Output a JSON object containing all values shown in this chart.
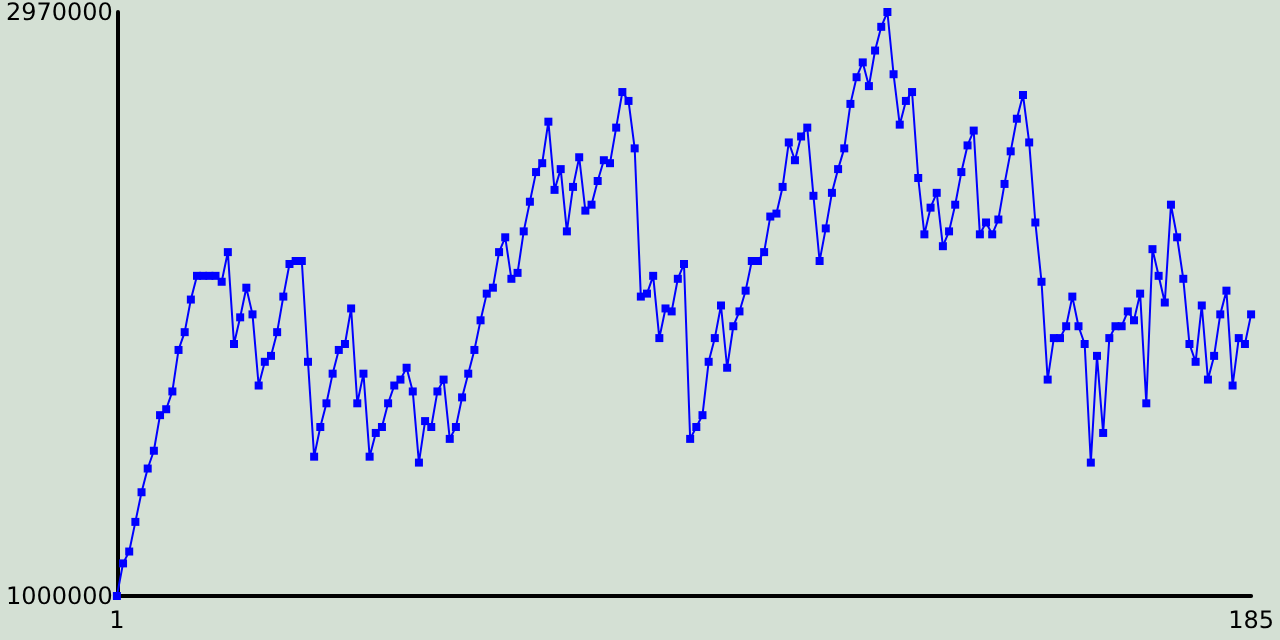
{
  "chart_data": {
    "type": "line",
    "marker": "square",
    "line_style": "solid",
    "grid": false,
    "legend": false,
    "xlim": [
      1,
      185
    ],
    "xticks": [
      1,
      185
    ],
    "ylim": [
      1000000,
      2970000
    ],
    "yticks": [
      1000000,
      2970000
    ],
    "series": [
      {
        "color": "#0000ff",
        "x": [
          1,
          2,
          3,
          4,
          5,
          6,
          7,
          8,
          9,
          10,
          11,
          12,
          13,
          14,
          15,
          16,
          17,
          18,
          19,
          20,
          21,
          22,
          23,
          24,
          25,
          26,
          27,
          28,
          29,
          30,
          31,
          32,
          33,
          34,
          35,
          36,
          37,
          38,
          39,
          40,
          41,
          42,
          43,
          44,
          45,
          46,
          47,
          48,
          49,
          50,
          51,
          52,
          53,
          54,
          55,
          56,
          57,
          58,
          59,
          60,
          61,
          62,
          63,
          64,
          65,
          66,
          67,
          68,
          69,
          70,
          71,
          72,
          73,
          74,
          75,
          76,
          77,
          78,
          79,
          80,
          81,
          82,
          83,
          84,
          85,
          86,
          87,
          88,
          89,
          90,
          91,
          92,
          93,
          94,
          95,
          96,
          97,
          98,
          99,
          100,
          101,
          102,
          103,
          104,
          105,
          106,
          107,
          108,
          109,
          110,
          111,
          112,
          113,
          114,
          115,
          116,
          117,
          118,
          119,
          120,
          121,
          122,
          123,
          124,
          125,
          126,
          127,
          128,
          129,
          130,
          131,
          132,
          133,
          134,
          135,
          136,
          137,
          138,
          139,
          140,
          141,
          142,
          143,
          144,
          145,
          146,
          147,
          148,
          149,
          150,
          151,
          152,
          153,
          154,
          155,
          156,
          157,
          158,
          159,
          160,
          161,
          162,
          163,
          164,
          165,
          166,
          167,
          168,
          169,
          170,
          171,
          172,
          173,
          174,
          175,
          176,
          177,
          178,
          179,
          180,
          181,
          182,
          183,
          184,
          185
        ],
        "values": [
          1000000,
          1110000,
          1150000,
          1250000,
          1350000,
          1430000,
          1490000,
          1610000,
          1630000,
          1690000,
          1830000,
          1890000,
          2000000,
          2080000,
          2080000,
          2080000,
          2080000,
          2060000,
          2160000,
          1850000,
          1940000,
          2040000,
          1950000,
          1710000,
          1790000,
          1810000,
          1890000,
          2010000,
          2120000,
          2130000,
          2130000,
          1790000,
          1470000,
          1570000,
          1650000,
          1750000,
          1830000,
          1850000,
          1970000,
          1650000,
          1750000,
          1470000,
          1550000,
          1570000,
          1650000,
          1710000,
          1730000,
          1770000,
          1690000,
          1450000,
          1590000,
          1570000,
          1690000,
          1730000,
          1530000,
          1570000,
          1670000,
          1750000,
          1830000,
          1930000,
          2020000,
          2040000,
          2160000,
          2210000,
          2070000,
          2090000,
          2230000,
          2330000,
          2430000,
          2460000,
          2600000,
          2370000,
          2440000,
          2230000,
          2380000,
          2480000,
          2300000,
          2320000,
          2400000,
          2470000,
          2460000,
          2580000,
          2700000,
          2670000,
          2510000,
          2010000,
          2020000,
          2080000,
          1870000,
          1970000,
          1960000,
          2070000,
          2120000,
          1530000,
          1570000,
          1610000,
          1790000,
          1870000,
          1980000,
          1770000,
          1910000,
          1960000,
          2030000,
          2130000,
          2130000,
          2160000,
          2280000,
          2290000,
          2380000,
          2530000,
          2470000,
          2550000,
          2580000,
          2350000,
          2130000,
          2240000,
          2360000,
          2440000,
          2510000,
          2660000,
          2750000,
          2800000,
          2720000,
          2840000,
          2920000,
          2970000,
          2760000,
          2590000,
          2670000,
          2700000,
          2410000,
          2220000,
          2310000,
          2360000,
          2180000,
          2230000,
          2320000,
          2430000,
          2520000,
          2570000,
          2220000,
          2260000,
          2220000,
          2270000,
          2390000,
          2500000,
          2610000,
          2690000,
          2530000,
          2260000,
          2060000,
          1730000,
          1870000,
          1870000,
          1910000,
          2010000,
          1910000,
          1850000,
          1450000,
          1810000,
          1550000,
          1870000,
          1910000,
          1910000,
          1960000,
          1930000,
          2020000,
          1650000,
          2170000,
          2080000,
          1990000,
          2320000,
          2210000,
          2070000,
          1850000,
          1790000,
          1980000,
          1730000,
          1810000,
          1950000,
          2030000,
          1710000,
          1870000,
          1850000,
          1950000
        ]
      }
    ]
  }
}
